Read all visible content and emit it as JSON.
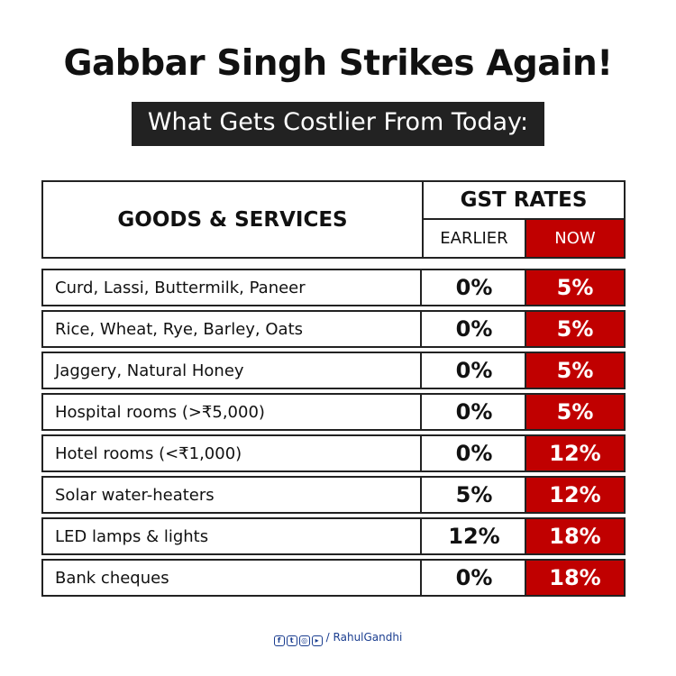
{
  "title": "Gabbar Singh Strikes Again!",
  "subtitle": "What Gets Costlier From Today:",
  "table": {
    "header": {
      "goods": "GOODS & SERVICES",
      "gst": "GST RATES",
      "earlier": "EARLIER",
      "now": "NOW"
    },
    "rows": [
      {
        "item": "Curd, Lassi, Buttermilk, Paneer",
        "earlier": "0%",
        "now": "5%"
      },
      {
        "item": "Rice, Wheat, Rye, Barley, Oats",
        "earlier": "0%",
        "now": "5%"
      },
      {
        "item": "Jaggery, Natural Honey",
        "earlier": "0%",
        "now": "5%"
      },
      {
        "item": "Hospital rooms (>₹5,000)",
        "earlier": "0%",
        "now": "5%"
      },
      {
        "item": "Hotel rooms (<₹1,000)",
        "earlier": "0%",
        "now": "12%"
      },
      {
        "item": "Solar water-heaters",
        "earlier": "5%",
        "now": "12%"
      },
      {
        "item": "LED lamps & lights",
        "earlier": "12%",
        "now": "18%"
      },
      {
        "item": "Bank cheques",
        "earlier": "0%",
        "now": "18%"
      }
    ]
  },
  "footer": {
    "icons": [
      "facebook-icon",
      "twitter-icon",
      "instagram-icon",
      "youtube-icon"
    ],
    "handle": "/ RahulGandhi"
  },
  "colors": {
    "accent": "#c00000",
    "dark": "#222222",
    "social": "#1a3d8f"
  }
}
